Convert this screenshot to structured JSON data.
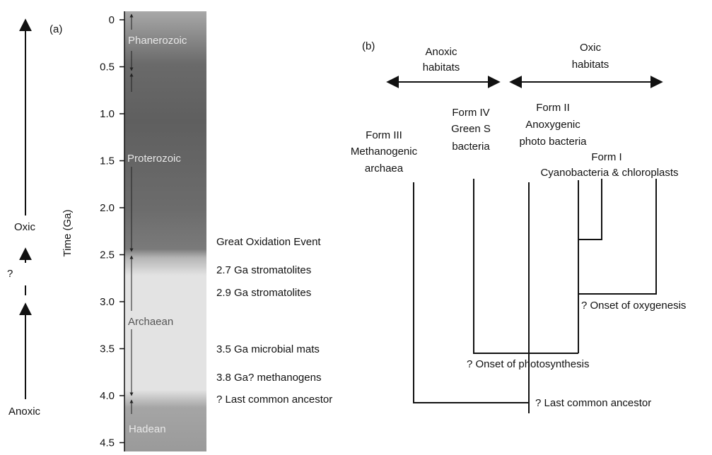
{
  "panel_a": {
    "label": "(a)",
    "left_axis": {
      "top": "Oxic",
      "bottom": "Anoxic",
      "question": "?"
    },
    "y_axis_title": "Time (Ga)",
    "ticks": [
      "0",
      "0.5",
      "1.0",
      "1.5",
      "2.0",
      "2.5",
      "3.0",
      "3.5",
      "4.0",
      "4.5"
    ],
    "eons": {
      "phanerozoic": "Phanerozoic",
      "proterozoic": "Proterozoic",
      "archaean": "Archaean",
      "hadean": "Hadean"
    },
    "events": {
      "goe": "Great Oxidation Event",
      "strom27": "2.7 Ga stromatolites",
      "strom29": "2.9 Ga stromatolites",
      "mats35": "3.5 Ga microbial mats",
      "methano38": "3.8 Ga? methanogens",
      "lca": "? Last common ancestor"
    }
  },
  "panel_b": {
    "label": "(b)",
    "habitats": {
      "anoxic_1": "Anoxic",
      "anoxic_2": "habitats",
      "oxic_1": "Oxic",
      "oxic_2": "habitats"
    },
    "form3": {
      "name": "Form III",
      "line1": "Methanogenic",
      "line2": "archaea"
    },
    "form4": {
      "name": "Form IV",
      "line1": "Green S",
      "line2": "bacteria"
    },
    "form2": {
      "name": "Form II",
      "line1": "Anoxygenic",
      "line2": "photo bacteria"
    },
    "form1": {
      "name": "Form I",
      "line1": "Cyanobacteria & chloroplasts"
    },
    "nodes": {
      "oxygenesis": "? Onset of oxygenesis",
      "photosynthesis": "? Onset of photosynthesis",
      "lca": "? Last common ancestor"
    }
  }
}
